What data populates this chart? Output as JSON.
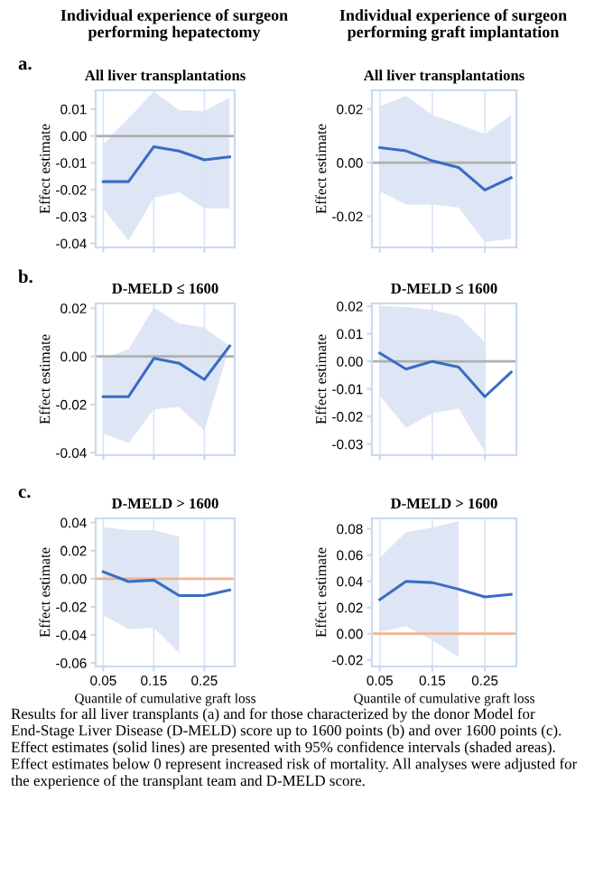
{
  "chart_data": [
    {
      "type": "line",
      "title": "Individual experience of surgeon performing hepatectomy",
      "subtitle": "All liver transplantations",
      "ylabel": "Effect estimate",
      "annotations": [
        "a."
      ],
      "x": [
        0.05,
        0.1,
        0.15,
        0.2,
        0.25,
        0.3
      ],
      "series": [
        {
          "color": "#3a6cc4",
          "values": [
            -0.017,
            -0.017,
            -0.004,
            -0.0056,
            -0.0089,
            -0.0078
          ],
          "lower": [
            -0.027,
            -0.039,
            -0.023,
            -0.021,
            -0.027,
            -0.027
          ],
          "upper": [
            -0.003,
            0.0067,
            0.0165,
            0.0096,
            0.0093,
            0.0144
          ]
        }
      ],
      "xlim": [
        0.035,
        0.31
      ],
      "ylim": [
        -0.0415,
        0.017
      ],
      "xticks": [
        0.05,
        0.15,
        0.25
      ],
      "yticks": [
        {
          "value": 0.01,
          "label": "0.01"
        },
        {
          "value": 0.0,
          "label": "0.00"
        },
        {
          "value": -0.01,
          "label": "-0.01"
        },
        {
          "value": -0.02,
          "label": "-0.02"
        },
        {
          "value": -0.03,
          "label": "-0.03"
        },
        {
          "value": -0.04,
          "label": "-0.04"
        }
      ],
      "ref_lines": [
        {
          "axis": "y",
          "value": 0,
          "color": "#b0b0b0"
        }
      ],
      "grid": "x",
      "tick_labels": "y"
    },
    {
      "type": "line",
      "title": "Individual experience of surgeon performing graft implantation",
      "subtitle": "All liver transplantations",
      "ylabel": "Effect estimate",
      "x": [
        0.05,
        0.1,
        0.15,
        0.2,
        0.25,
        0.3
      ],
      "series": [
        {
          "color": "#3a6cc4",
          "values": [
            0.0056,
            0.0044,
            0.0007,
            -0.0018,
            -0.0102,
            -0.0056
          ],
          "lower": [
            -0.0107,
            -0.0156,
            -0.0156,
            -0.0167,
            -0.0296,
            -0.0284
          ],
          "upper": [
            0.021,
            0.025,
            0.0178,
            0.0144,
            0.0107,
            0.0178
          ]
        }
      ],
      "xlim": [
        0.035,
        0.31
      ],
      "ylim": [
        -0.0316,
        0.027
      ],
      "xticks": [
        0.05,
        0.15,
        0.25
      ],
      "yticks": [
        {
          "value": 0.02,
          "label": "0.02"
        },
        {
          "value": 0.0,
          "label": "0.00"
        },
        {
          "value": -0.02,
          "label": "-0.02"
        }
      ],
      "ref_lines": [
        {
          "axis": "y",
          "value": 0,
          "color": "#b0b0b0"
        }
      ],
      "grid": "x",
      "tick_labels": "y"
    },
    {
      "type": "line",
      "title": "D-MELD ≤ 1600",
      "ylabel": "Effect estimate",
      "annotations": [
        "b."
      ],
      "x": [
        0.05,
        0.1,
        0.15,
        0.2,
        0.25,
        0.3
      ],
      "series": [
        {
          "color": "#3a6cc4",
          "values": [
            -0.0167,
            -0.0167,
            -0.0008,
            -0.0028,
            -0.0096,
            0.0043
          ],
          "lower": [
            -0.032,
            -0.036,
            -0.022,
            -0.021,
            -0.031,
            0.0043
          ],
          "upper": [
            -0.0008,
            0.003,
            0.0203,
            0.0137,
            0.012,
            0.0043
          ]
        }
      ],
      "xlim": [
        0.035,
        0.31
      ],
      "ylim": [
        -0.041,
        0.022
      ],
      "xticks": [
        0.05,
        0.15,
        0.25
      ],
      "yticks": [
        {
          "value": 0.02,
          "label": "0.02"
        },
        {
          "value": 0.0,
          "label": "0.00"
        },
        {
          "value": -0.02,
          "label": "-0.02"
        },
        {
          "value": -0.04,
          "label": "-0.04"
        }
      ],
      "ref_lines": [
        {
          "axis": "y",
          "value": 0,
          "color": "#b0b0b0"
        }
      ],
      "grid": "x",
      "tick_labels": "y"
    },
    {
      "type": "line",
      "title": "D-MELD ≤ 1600",
      "ylabel": "Effect estimate",
      "x": [
        0.05,
        0.1,
        0.15,
        0.2,
        0.25,
        0.3
      ],
      "series": [
        {
          "color": "#3a6cc4",
          "values": [
            0.003,
            -0.0028,
            0.0,
            -0.0021,
            -0.0128,
            -0.0039
          ],
          "lower": [
            -0.0124,
            -0.0242,
            -0.0188,
            -0.0171,
            -0.0328,
            null
          ],
          "upper": [
            0.02,
            0.0197,
            0.0186,
            0.0165,
            0.0069,
            null
          ]
        }
      ],
      "xlim": [
        0.035,
        0.31
      ],
      "ylim": [
        -0.034,
        0.021
      ],
      "xticks": [
        0.05,
        0.15,
        0.25
      ],
      "yticks": [
        {
          "value": 0.02,
          "label": "0.02"
        },
        {
          "value": 0.01,
          "label": "0.01"
        },
        {
          "value": 0.0,
          "label": "0.00"
        },
        {
          "value": -0.01,
          "label": "-0.01"
        },
        {
          "value": -0.02,
          "label": "-0.02"
        },
        {
          "value": -0.03,
          "label": "-0.03"
        }
      ],
      "ref_lines": [
        {
          "axis": "y",
          "value": 0,
          "color": "#b0b0b0"
        }
      ],
      "grid": "x",
      "tick_labels": "y"
    },
    {
      "type": "line",
      "title": "D-MELD > 1600",
      "xlabel": "Quantile of cumulative graft loss",
      "ylabel": "Effect estimate",
      "annotations": [
        "c.",
        "Results for all liver transplants (a) and for those characterized by the donor Model for End-Stage Liver Disease (D-MELD) score up to 1600 points (b) and over 1600 points (c). Effect estimates (solid lines) are presented with 95% confidence intervals (shaded areas). Effect estimates below 0 represent increased risk of mortality. All analyses were adjusted for the experience of the transplant team and D-MELD score."
      ],
      "x": [
        0.05,
        0.1,
        0.15,
        0.2,
        0.25,
        0.3
      ],
      "series": [
        {
          "color": "#3a6cc4",
          "values": [
            0.005,
            -0.002,
            -0.001,
            -0.012,
            -0.012,
            -0.008
          ],
          "lower": [
            -0.026,
            -0.036,
            -0.035,
            -0.053,
            null,
            null
          ],
          "upper": [
            0.0367,
            0.0346,
            0.0346,
            0.03,
            null,
            null
          ]
        }
      ],
      "xlim": [
        0.035,
        0.31
      ],
      "ylim": [
        -0.0625,
        0.043
      ],
      "xticks": [
        0.05,
        0.15,
        0.25
      ],
      "yticks": [
        {
          "value": 0.04,
          "label": "0.04"
        },
        {
          "value": 0.02,
          "label": "0.02"
        },
        {
          "value": 0.0,
          "label": "0.00"
        },
        {
          "value": -0.02,
          "label": "-0.02"
        },
        {
          "value": -0.04,
          "label": "-0.04"
        },
        {
          "value": -0.06,
          "label": "-0.06"
        }
      ],
      "ref_lines": [
        {
          "axis": "y",
          "value": 0,
          "color": "#f0b48c"
        }
      ],
      "grid": "x"
    },
    {
      "type": "line",
      "title": "D-MELD > 1600",
      "xlabel": "Quantile of cumulative graft loss",
      "ylabel": "Effect estimate",
      "x": [
        0.05,
        0.1,
        0.15,
        0.2,
        0.25,
        0.3
      ],
      "series": [
        {
          "color": "#3a6cc4",
          "values": [
            0.026,
            0.04,
            0.039,
            0.034,
            0.028,
            0.03
          ],
          "lower": [
            0.0013,
            0.0057,
            -0.005,
            -0.018,
            null,
            null
          ],
          "upper": [
            0.058,
            0.0776,
            0.081,
            0.086,
            null,
            null
          ]
        }
      ],
      "xlim": [
        0.035,
        0.31
      ],
      "ylim": [
        -0.025,
        0.088
      ],
      "xticks": [
        0.05,
        0.15,
        0.25
      ],
      "yticks": [
        {
          "value": 0.08,
          "label": "0.08"
        },
        {
          "value": 0.06,
          "label": "0.06"
        },
        {
          "value": 0.04,
          "label": "0.04"
        },
        {
          "value": 0.02,
          "label": "0.02"
        },
        {
          "value": 0.0,
          "label": "0.00"
        },
        {
          "value": -0.02,
          "label": "-0.02"
        }
      ],
      "ref_lines": [
        {
          "axis": "y",
          "value": 0,
          "color": "#f0b48c"
        }
      ],
      "grid": "x"
    }
  ]
}
